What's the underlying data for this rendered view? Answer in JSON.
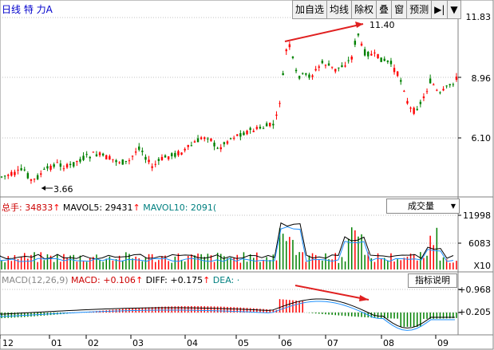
{
  "header": {
    "title": "日线  特  力A",
    "toolbar": [
      "加自选",
      "均线",
      "除权",
      "叠",
      "窗",
      "预测"
    ],
    "nav_icon": "arrow-right-bar-icon",
    "menu_icon": "triangle-down-icon"
  },
  "price_panel": {
    "right_labels": [
      "11.83",
      "8.96",
      "6.10"
    ],
    "high_label": "11.40",
    "low_label": "3.66"
  },
  "volume_panel": {
    "info_parts": [
      {
        "text": "总手: 34833",
        "color": "#cc0000"
      },
      {
        "text": "↑",
        "color": "#ff0000"
      },
      {
        "text": " MAVOL5: 29431",
        "color": "#000000"
      },
      {
        "text": "↑",
        "color": "#ff0000"
      },
      {
        "text": " MAVOL10: 2091(",
        "color": "#008080"
      }
    ],
    "dropdown_label": "成交量",
    "right_labels": [
      "11998",
      "6083",
      "X10"
    ]
  },
  "macd_panel": {
    "info_parts": [
      {
        "text": "MACD(12,26,9) ",
        "color": "#888888"
      },
      {
        "text": "MACD: +0.106",
        "color": "#cc0000"
      },
      {
        "text": "↑",
        "color": "#ff0000"
      },
      {
        "text": " DIFF: +0.175",
        "color": "#000000"
      },
      {
        "text": "↑",
        "color": "#ff0000"
      },
      {
        "text": " DEA: ·",
        "color": "#008080"
      }
    ],
    "help_label": "指标说明",
    "right_labels": [
      "+0.968",
      "+0.205"
    ]
  },
  "x_axis": [
    "12",
    "01",
    "02",
    "03",
    "04",
    "05",
    "06",
    "07",
    "08",
    "09"
  ],
  "colors": {
    "up": "#ff0000",
    "down": "#008000",
    "grid": "#c0c0c0",
    "axis_text": "#000000"
  }
}
